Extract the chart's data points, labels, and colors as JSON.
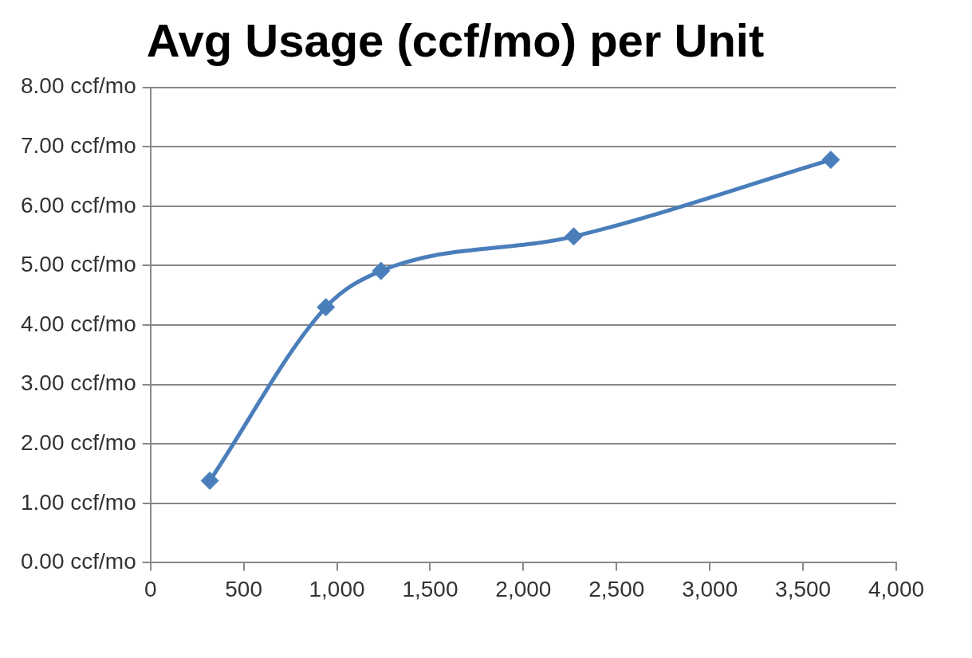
{
  "chart_data": {
    "type": "line",
    "title": "Avg Usage (ccf/mo) per Unit",
    "x": [
      318,
      941,
      1236,
      2270,
      3649
    ],
    "series": [
      {
        "color": "#4a7ebb",
        "values": [
          1.38,
          4.3,
          4.91,
          5.49,
          6.78
        ]
      }
    ],
    "xlim": [
      0,
      4000
    ],
    "xticks": [
      0,
      500,
      {
        "value": 1000,
        "label": "1,000"
      },
      {
        "value": 1500,
        "label": "1,500"
      },
      {
        "value": 2000,
        "label": "2,000"
      },
      {
        "value": 2500,
        "label": "2,500"
      },
      {
        "value": 3000,
        "label": "3,000"
      },
      {
        "value": 3500,
        "label": "3,500"
      },
      {
        "value": 4000,
        "label": "4,000"
      }
    ],
    "ylim": [
      0,
      8
    ],
    "yticks": [
      {
        "value": 0,
        "label": "0.00 ccf/mo"
      },
      {
        "value": 1,
        "label": "1.00 ccf/mo"
      },
      {
        "value": 2,
        "label": "2.00 ccf/mo"
      },
      {
        "value": 3,
        "label": "3.00 ccf/mo"
      },
      {
        "value": 4,
        "label": "4.00 ccf/mo"
      },
      {
        "value": 5,
        "label": "5.00 ccf/mo"
      },
      {
        "value": 6,
        "label": "6.00 ccf/mo"
      },
      {
        "value": 7,
        "label": "7.00 ccf/mo"
      },
      {
        "value": 8,
        "label": "8.00 ccf/mo"
      }
    ],
    "grid": "y",
    "legend": false,
    "marker": "diamond",
    "line_style": "solid"
  }
}
